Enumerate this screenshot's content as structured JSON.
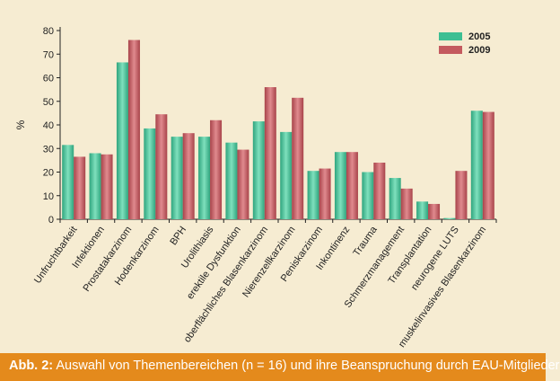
{
  "chart_data": {
    "type": "bar",
    "title": "",
    "xlabel": "",
    "ylabel": "%",
    "ylim": [
      0,
      80
    ],
    "yticks": [
      "0",
      "10",
      "20",
      "30",
      "40",
      "50",
      "60",
      "70",
      "80"
    ],
    "categories": [
      "Unfruchtbarkeit",
      "Infektionen",
      "Prostatakarzinom",
      "Hodenkarzinom",
      "BPH",
      "Urolithiasis",
      "erektile Dysfunktion",
      "oberflächliches Blasenkarzinom",
      "Nierenzellkarzinom",
      "Peniskarzinom",
      "Inkontinenz",
      "Trauma",
      "Schmerzmanagement",
      "Transplantation",
      "neurogene LUTS",
      "muskelinvasives Blasenkarzinom"
    ],
    "series": [
      {
        "name": "2005",
        "color": "#3dbf93",
        "values": [
          31.5,
          28,
          66.5,
          38.5,
          35,
          35,
          32.5,
          41.5,
          37,
          20.5,
          28.5,
          20,
          17.5,
          7.5,
          0.5,
          46
        ]
      },
      {
        "name": "2009",
        "color": "#c45a5f",
        "values": [
          26.5,
          27.5,
          76,
          44.5,
          36.5,
          42,
          29.5,
          56,
          51.5,
          21.5,
          28.5,
          24,
          13,
          6.5,
          20.5,
          45.5
        ]
      }
    ],
    "grid": false,
    "legend_position": "top-right"
  },
  "caption": {
    "label": "Abb. 2:",
    "text": " Auswahl von Themenbereichen (n = 16) und ihre Beanspruchung durch EAU-Mitglieder"
  }
}
